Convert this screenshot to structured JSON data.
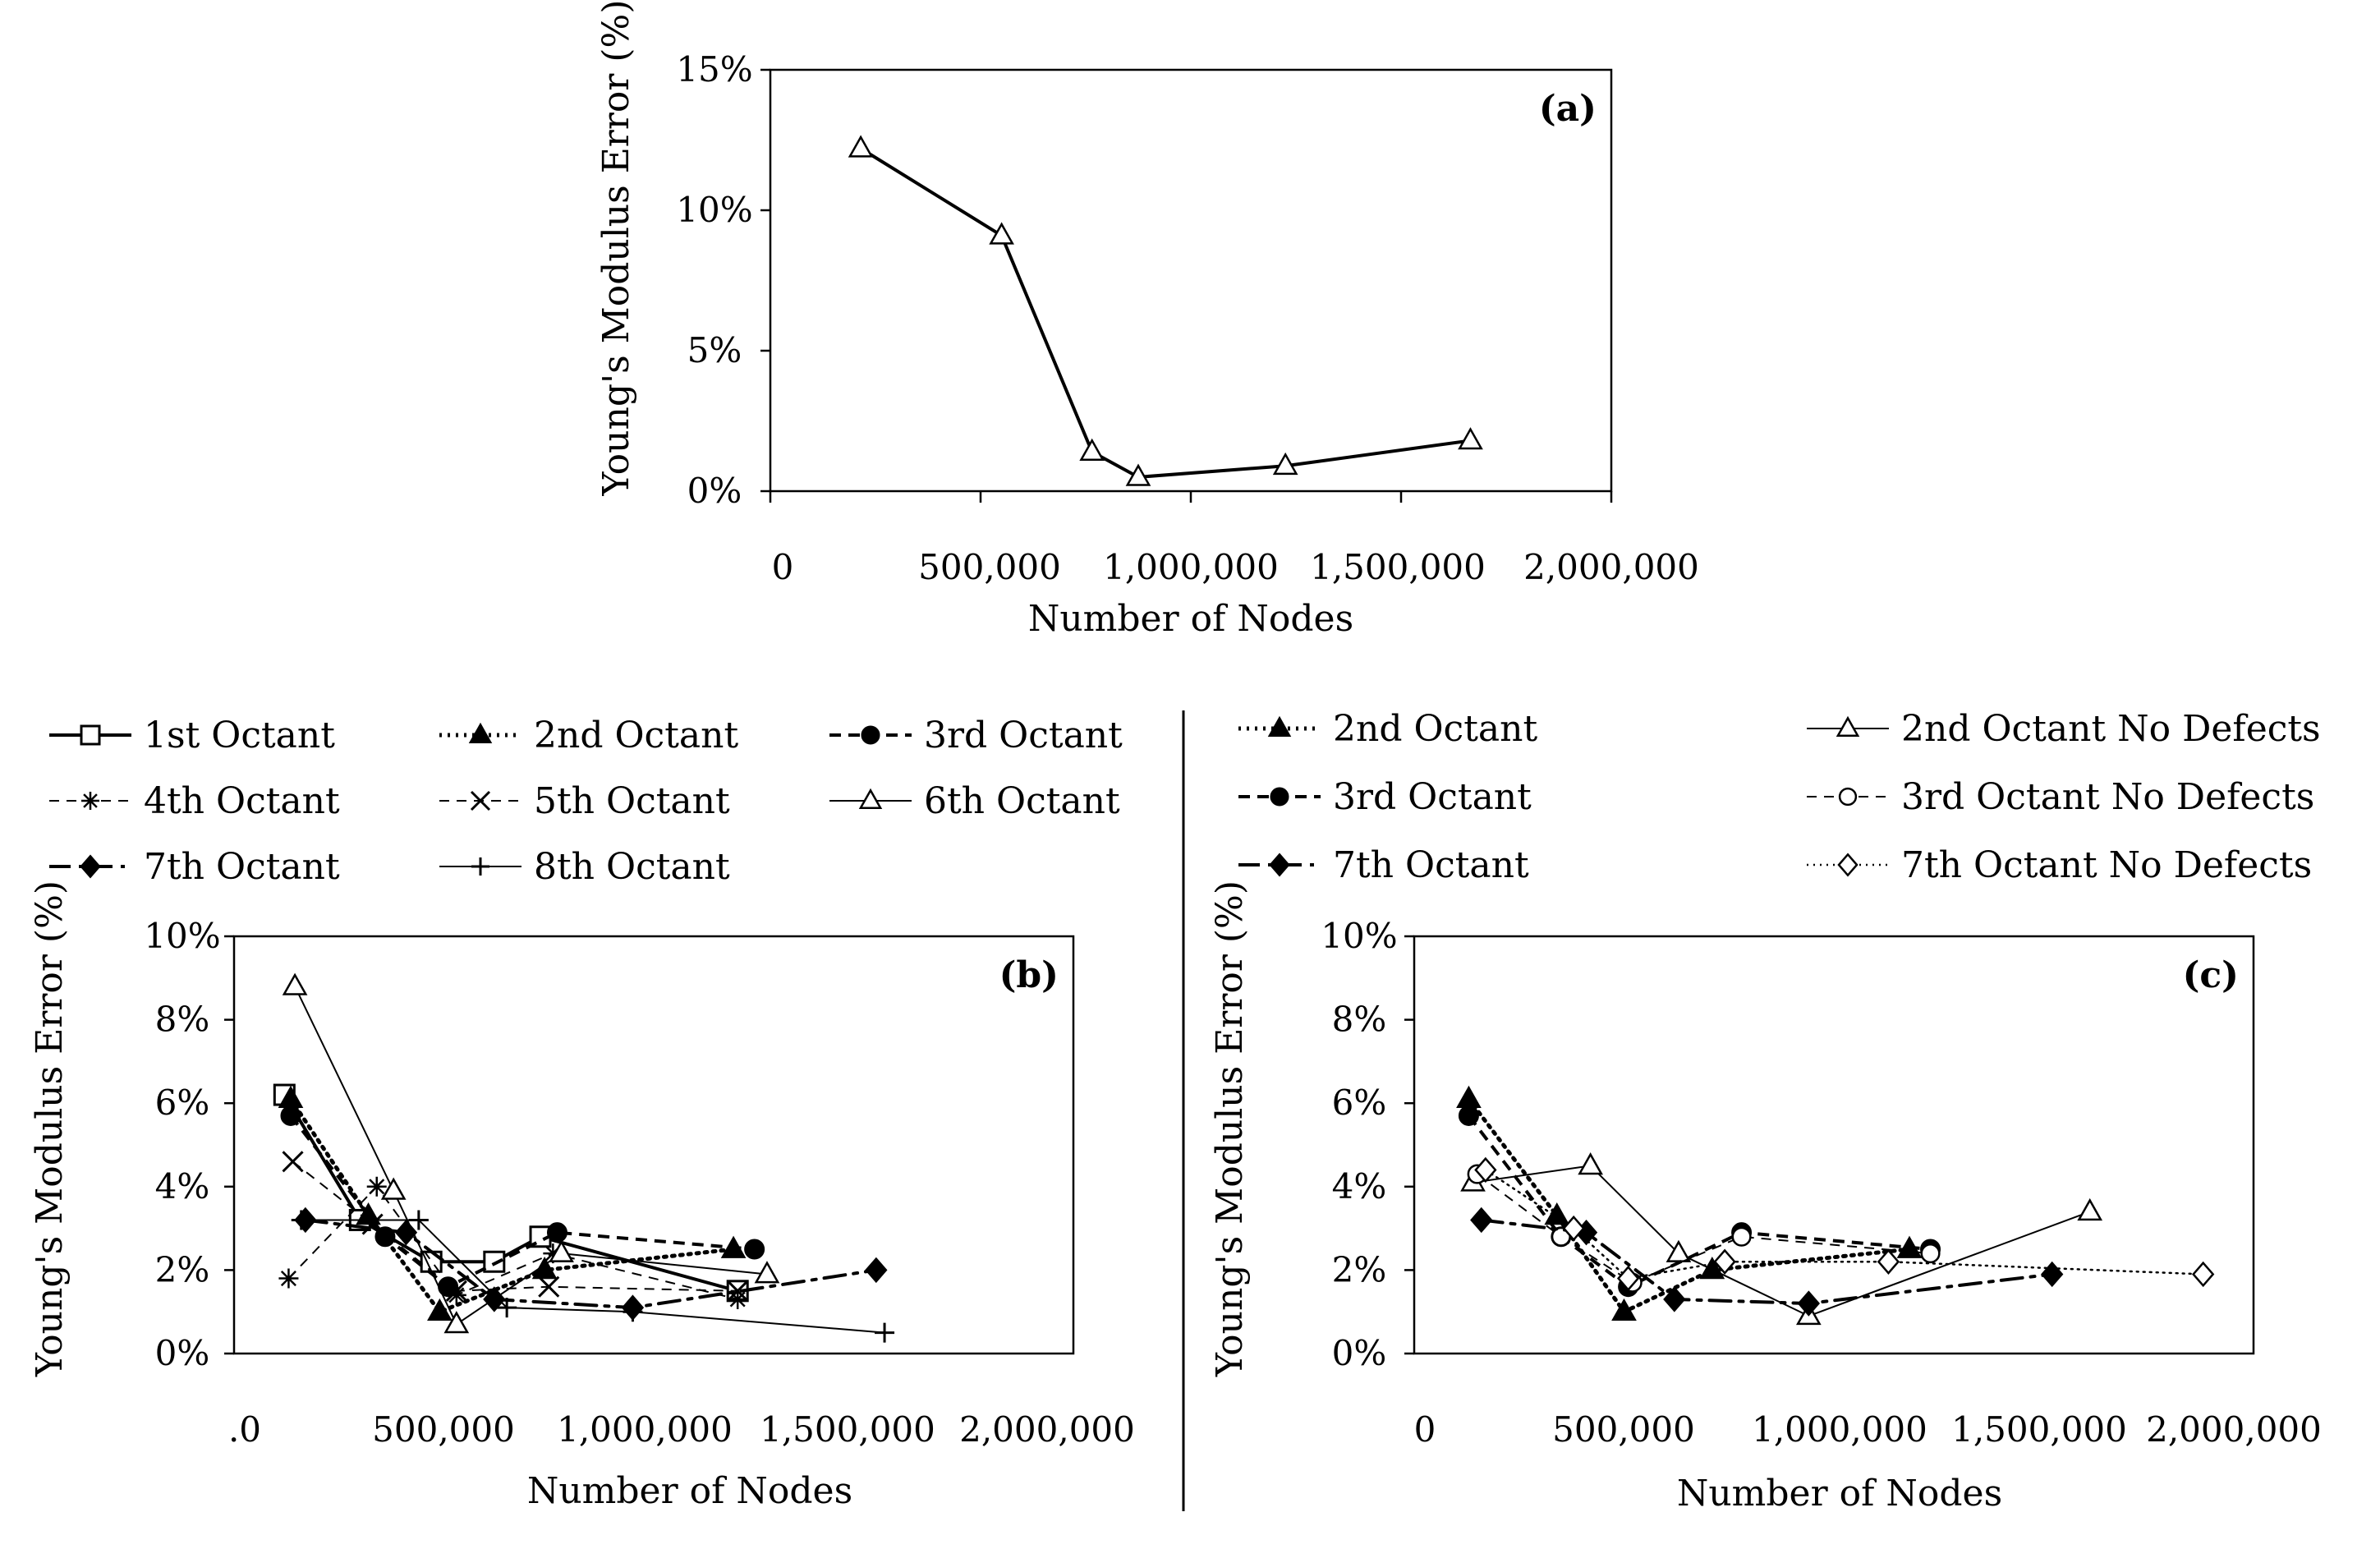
{
  "chart_data": [
    {
      "id": "a",
      "type": "line",
      "panel_label": "(a)",
      "xlabel": "Number of Nodes",
      "ylabel": "Young's Modulus Error (%)",
      "xlim": [
        0,
        2000000
      ],
      "ylim": [
        0,
        15
      ],
      "x_ticks": [
        "0",
        "500,000",
        "1,000,000",
        "1,500,000",
        "2,000,000"
      ],
      "y_ticks": [
        "0%",
        "5%",
        "10%",
        "15%"
      ],
      "series": [
        {
          "name": "",
          "marker": "triangle-open",
          "line": "solid-thick",
          "x": [
            215000,
            550000,
            765000,
            875000,
            1225000,
            1665000
          ],
          "values": [
            12.2,
            9.1,
            1.4,
            0.5,
            0.9,
            1.8
          ]
        }
      ]
    },
    {
      "id": "b",
      "type": "line",
      "panel_label": "(b)",
      "xlabel": "Number of Nodes",
      "ylabel": "Young's Modulus Error (%)",
      "xlim": [
        0,
        2000000
      ],
      "ylim": [
        0,
        10
      ],
      "x_ticks": [
        ".0",
        "500,000",
        "1,000,000",
        "1,500,000",
        "2,000,000"
      ],
      "y_ticks": [
        "0%",
        "2%",
        "4%",
        "6%",
        "8%",
        "10%"
      ],
      "series": [
        {
          "name": "1st Octant",
          "marker": "square-open",
          "line": "solid-thick",
          "x": [
            120000,
            300000,
            470000,
            620000,
            730000,
            1200000
          ],
          "values": [
            6.2,
            3.2,
            2.2,
            2.2,
            2.8,
            1.5
          ]
        },
        {
          "name": "2nd Octant",
          "marker": "triangle-filled",
          "line": "dotted-thick",
          "x": [
            135000,
            320000,
            490000,
            740000,
            1190000
          ],
          "values": [
            6.1,
            3.3,
            1.0,
            2.0,
            2.5
          ]
        },
        {
          "name": "3rd Octant",
          "marker": "circle-filled",
          "line": "dashed-thick",
          "x": [
            135000,
            360000,
            510000,
            770000,
            1240000
          ],
          "values": [
            5.7,
            2.8,
            1.6,
            2.9,
            2.5
          ]
        },
        {
          "name": "4th Octant",
          "marker": "asterisk",
          "line": "dashed-thin",
          "x": [
            130000,
            340000,
            530000,
            760000,
            1200000
          ],
          "values": [
            1.8,
            4.0,
            1.4,
            2.4,
            1.3
          ]
        },
        {
          "name": "5th Octant",
          "marker": "cross",
          "line": "dashed-thin",
          "x": [
            140000,
            330000,
            530000,
            750000,
            1200000
          ],
          "values": [
            4.6,
            3.1,
            1.5,
            1.6,
            1.5
          ]
        },
        {
          "name": "6th Octant",
          "marker": "triangle-open",
          "line": "solid-thin",
          "x": [
            145000,
            380000,
            530000,
            780000,
            1270000
          ],
          "values": [
            8.8,
            3.9,
            0.7,
            2.4,
            1.9
          ]
        },
        {
          "name": "7th Octant",
          "marker": "diamond-filled",
          "line": "dashdot-thick",
          "x": [
            170000,
            410000,
            620000,
            950000,
            1530000
          ],
          "values": [
            3.2,
            2.9,
            1.3,
            1.1,
            2.0
          ]
        },
        {
          "name": "8th Octant",
          "marker": "plus",
          "line": "solid-thin",
          "x": [
            160000,
            440000,
            650000,
            950000,
            1550000
          ],
          "values": [
            3.2,
            3.2,
            1.1,
            1.0,
            0.5
          ]
        }
      ]
    },
    {
      "id": "c",
      "type": "line",
      "panel_label": "(c)",
      "xlabel": "Number of Nodes",
      "ylabel": "Young's Modulus Error (%)",
      "xlim": [
        0,
        2000000
      ],
      "ylim": [
        0,
        10
      ],
      "x_ticks": [
        "0",
        "500,000",
        "1,000,000",
        "1,500,000",
        "2,000,000"
      ],
      "y_ticks": [
        "0%",
        "2%",
        "4%",
        "6%",
        "8%",
        "10%"
      ],
      "series": [
        {
          "name": "2nd Octant",
          "marker": "triangle-filled",
          "line": "dotted-thick",
          "x": [
            130000,
            340000,
            500000,
            710000,
            1180000
          ],
          "values": [
            6.1,
            3.3,
            1.0,
            2.0,
            2.5
          ]
        },
        {
          "name": "2nd Octant No Defects",
          "marker": "triangle-open",
          "line": "solid-thin",
          "x": [
            140000,
            420000,
            630000,
            940000,
            1610000
          ],
          "values": [
            4.1,
            4.5,
            2.4,
            0.9,
            3.4
          ]
        },
        {
          "name": "3rd Octant",
          "marker": "circle-filled",
          "line": "dashed-thick",
          "x": [
            130000,
            350000,
            510000,
            780000,
            1230000
          ],
          "values": [
            5.7,
            2.8,
            1.6,
            2.9,
            2.5
          ]
        },
        {
          "name": "3rd Octant No Defects",
          "marker": "circle-open",
          "line": "dashed-thin",
          "x": [
            150000,
            350000,
            520000,
            780000,
            1230000
          ],
          "values": [
            4.3,
            2.8,
            1.7,
            2.8,
            2.4
          ]
        },
        {
          "name": "7th Octant",
          "marker": "diamond-filled",
          "line": "dashdot-thick",
          "x": [
            160000,
            410000,
            620000,
            940000,
            1520000
          ],
          "values": [
            3.2,
            2.9,
            1.3,
            1.2,
            1.9
          ]
        },
        {
          "name": "7th Octant No Defects",
          "marker": "diamond-open",
          "line": "dotted-thin",
          "x": [
            170000,
            380000,
            510000,
            740000,
            1130000,
            1880000
          ],
          "values": [
            4.4,
            3.0,
            1.8,
            2.2,
            2.2,
            1.9
          ]
        }
      ]
    }
  ]
}
